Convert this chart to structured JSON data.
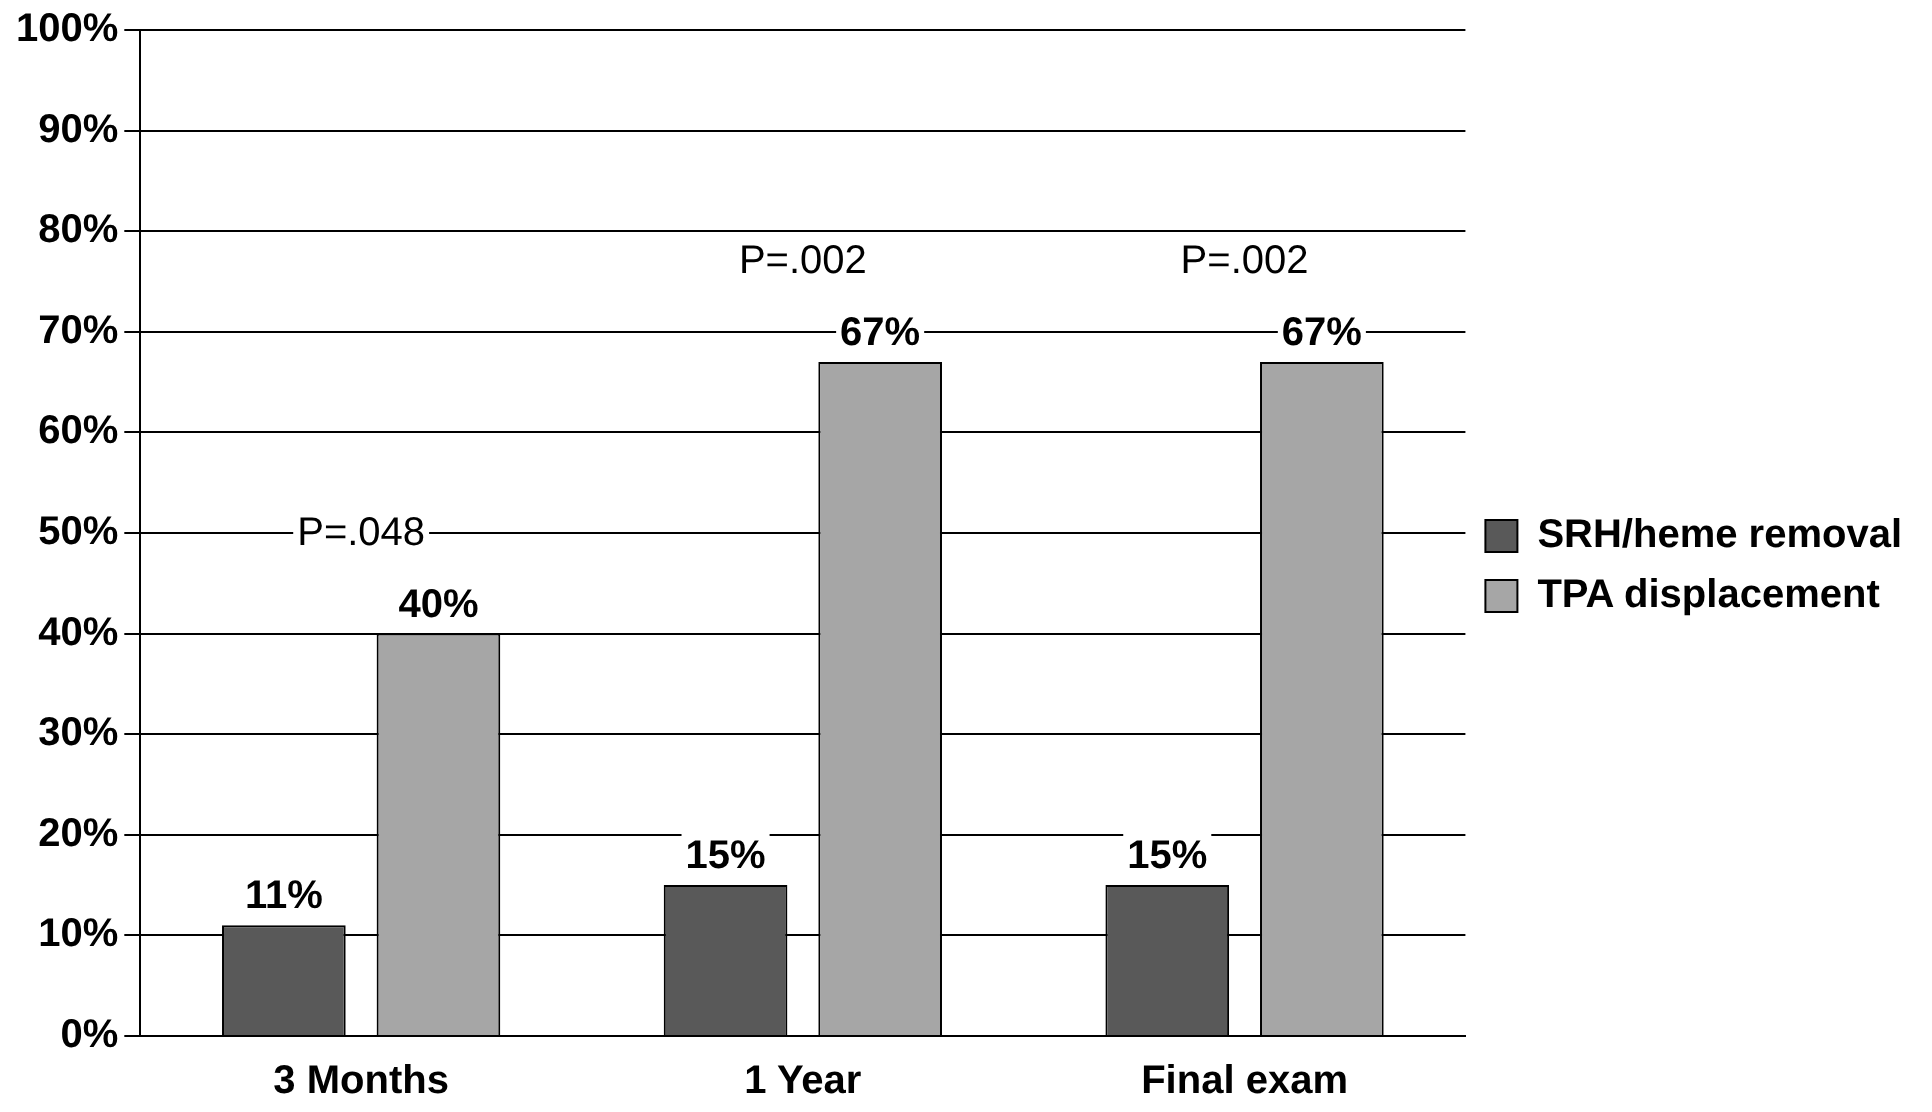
{
  "chart_data": {
    "type": "bar",
    "categories": [
      "3 Months",
      "1 Year",
      "Final exam"
    ],
    "series": [
      {
        "name": "SRH/heme removal",
        "color": "#595959",
        "values": [
          11,
          15,
          15
        ],
        "value_labels": [
          "11%",
          "15%",
          "15%"
        ]
      },
      {
        "name": "TPA displacement",
        "color": "#a6a6a6",
        "values": [
          40,
          67,
          67
        ],
        "value_labels": [
          "40%",
          "67%",
          "67%"
        ]
      }
    ],
    "ylim": [
      0,
      100
    ],
    "yticks": [
      {
        "value": 0,
        "label": "0%"
      },
      {
        "value": 10,
        "label": "10%"
      },
      {
        "value": 20,
        "label": "20%"
      },
      {
        "value": 30,
        "label": "30%"
      },
      {
        "value": 40,
        "label": "40%"
      },
      {
        "value": 50,
        "label": "50%"
      },
      {
        "value": 60,
        "label": "60%"
      },
      {
        "value": 70,
        "label": "70%"
      },
      {
        "value": 80,
        "label": "80%"
      },
      {
        "value": 90,
        "label": "90%"
      },
      {
        "value": 100,
        "label": "100%"
      }
    ],
    "grid": "y",
    "legend": "right",
    "annotations": [
      "P=.048",
      "P=.002",
      "P=.002"
    ]
  }
}
